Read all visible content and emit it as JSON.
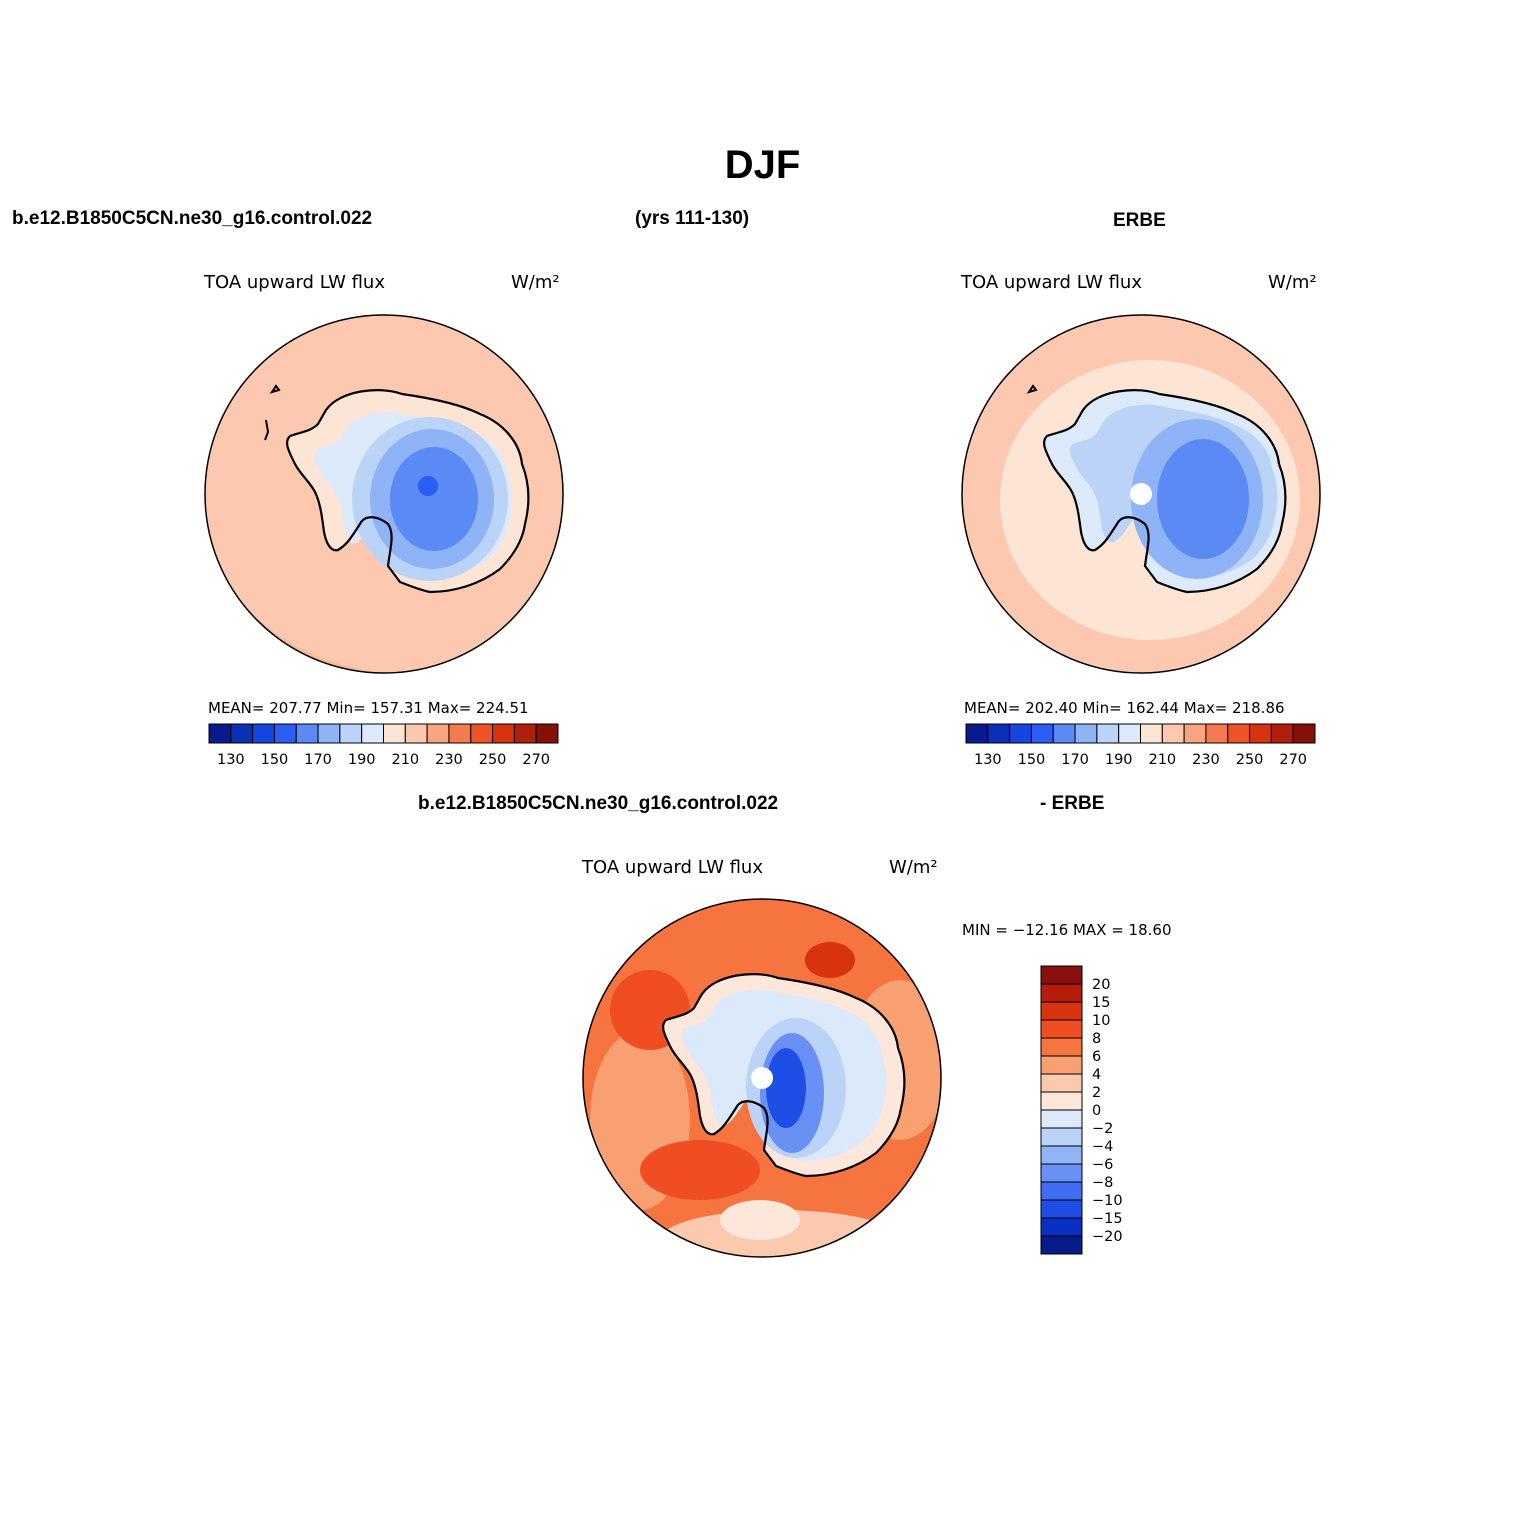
{
  "main_title": "DJF",
  "header": {
    "case_name": "b.e12.B1850C5CN.ne30_g16.control.022",
    "years": "(yrs 111-130)",
    "obs_name": "ERBE",
    "diff_case_name": "b.e12.B1850C5CN.ne30_g16.control.022",
    "diff_suffix": "- ERBE"
  },
  "panels": {
    "model": {
      "variable": "TOA upward LW flux",
      "units": "W/m²",
      "stats": "MEAN= 207.77   Min= 157.31   Max= 224.51"
    },
    "obs": {
      "variable": "TOA upward LW flux",
      "units": "W/m²",
      "stats": "MEAN= 202.40   Min= 162.44   Max= 218.86"
    },
    "diff": {
      "variable": "TOA upward LW flux",
      "units": "W/m²",
      "stats": "MIN = −12.16  MAX =   18.60"
    }
  },
  "colorbars": {
    "absolute": {
      "colors": [
        "#0a1a8c",
        "#0d2fb8",
        "#1546e0",
        "#2a5ef5",
        "#5b8af5",
        "#8fb3f7",
        "#bcd3f8",
        "#ddeafb",
        "#fde5d6",
        "#fcc9b0",
        "#f9a47e",
        "#f57a50",
        "#ee5328",
        "#d63313",
        "#b01e0c",
        "#851008"
      ],
      "labels": [
        "130",
        "150",
        "170",
        "190",
        "210",
        "230",
        "250",
        "270"
      ]
    },
    "difference": {
      "colors": [
        "#8a1010",
        "#b51c0c",
        "#d8330f",
        "#f04e22",
        "#f5743f",
        "#f8a072",
        "#fbc9ad",
        "#fde7da",
        "#dce9fa",
        "#bcd3f8",
        "#92b3f6",
        "#6990f5",
        "#3f6df3",
        "#1f4ee6",
        "#0a2fc4",
        "#061c8a"
      ],
      "labels": [
        "20",
        "15",
        "10",
        "8",
        "6",
        "4",
        "2",
        "0",
        "−2",
        "−4",
        "−6",
        "−8",
        "−10",
        "−15",
        "−20"
      ]
    }
  }
}
